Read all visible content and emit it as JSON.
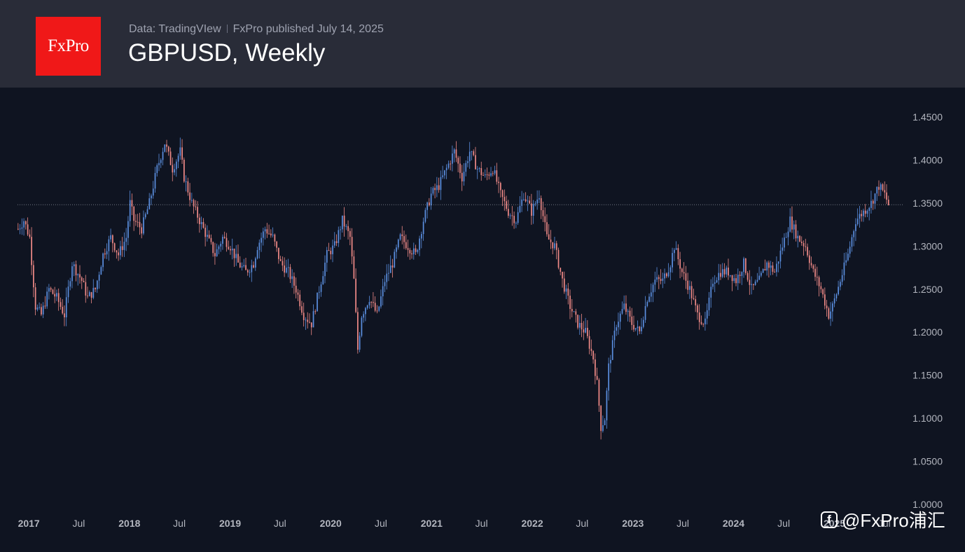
{
  "header": {
    "logo_text": "FxPro",
    "source_text": "Data: TradingVIew",
    "published_text": "FxPro published July 14, 2025",
    "title": "GBPUSD, Weekly"
  },
  "watermark": {
    "icon": "app-logo-icon",
    "text": "@FxPro浦汇"
  },
  "colors": {
    "background": "#0f1421",
    "header": "#292c38",
    "logo": "#f01818",
    "up_candle": "#5b8fe0",
    "down_candle": "#f08a87",
    "axis_text": "#b2b5be"
  },
  "chart_data": {
    "type": "candlestick",
    "title": "GBPUSD, Weekly",
    "x_axis": {
      "range": [
        "2016-11-21",
        "2025-07-14"
      ],
      "tick_labels": [
        {
          "label": "2017",
          "date": "2017-01-01"
        },
        {
          "label": "Jul",
          "date": "2017-07-01"
        },
        {
          "label": "2018",
          "date": "2018-01-01"
        },
        {
          "label": "Jul",
          "date": "2018-07-01"
        },
        {
          "label": "2019",
          "date": "2019-01-01"
        },
        {
          "label": "Jul",
          "date": "2019-07-01"
        },
        {
          "label": "2020",
          "date": "2020-01-01"
        },
        {
          "label": "Jul",
          "date": "2020-07-01"
        },
        {
          "label": "2021",
          "date": "2021-01-01"
        },
        {
          "label": "Jul",
          "date": "2021-07-01"
        },
        {
          "label": "2022",
          "date": "2022-01-01"
        },
        {
          "label": "Jul",
          "date": "2022-07-01"
        },
        {
          "label": "2023",
          "date": "2023-01-01"
        },
        {
          "label": "Jul",
          "date": "2023-07-01"
        },
        {
          "label": "2024",
          "date": "2024-01-01"
        },
        {
          "label": "Jul",
          "date": "2024-07-01"
        },
        {
          "label": "2025",
          "date": "2025-01-01"
        },
        {
          "label": "Jul",
          "date": "2025-07-01"
        }
      ]
    },
    "y_axis": {
      "ylim": [
        1.0,
        1.475
      ],
      "tick_labels": [
        "1.4500",
        "1.4000",
        "1.3500",
        "1.3000",
        "1.2500",
        "1.2000",
        "1.1500",
        "1.1000",
        "1.0500",
        "1.0000"
      ]
    },
    "last_price": 1.348,
    "grid": false,
    "price_path_closes": [
      [
        0,
        1.32
      ],
      [
        3,
        1.33
      ],
      [
        6,
        1.31
      ],
      [
        9,
        1.23
      ],
      [
        12,
        1.22
      ],
      [
        16,
        1.25
      ],
      [
        20,
        1.24
      ],
      [
        24,
        1.22
      ],
      [
        28,
        1.28
      ],
      [
        33,
        1.26
      ],
      [
        36,
        1.24
      ],
      [
        40,
        1.25
      ],
      [
        44,
        1.29
      ],
      [
        48,
        1.31
      ],
      [
        52,
        1.29
      ],
      [
        56,
        1.31
      ],
      [
        58,
        1.35
      ],
      [
        60,
        1.33
      ],
      [
        64,
        1.32
      ],
      [
        68,
        1.35
      ],
      [
        72,
        1.39
      ],
      [
        76,
        1.42
      ],
      [
        80,
        1.39
      ],
      [
        84,
        1.41
      ],
      [
        86,
        1.38
      ],
      [
        90,
        1.35
      ],
      [
        94,
        1.33
      ],
      [
        98,
        1.31
      ],
      [
        102,
        1.29
      ],
      [
        106,
        1.31
      ],
      [
        110,
        1.3
      ],
      [
        114,
        1.28
      ],
      [
        118,
        1.27
      ],
      [
        122,
        1.28
      ],
      [
        124,
        1.3
      ],
      [
        128,
        1.32
      ],
      [
        132,
        1.31
      ],
      [
        136,
        1.28
      ],
      [
        140,
        1.27
      ],
      [
        144,
        1.25
      ],
      [
        148,
        1.22
      ],
      [
        152,
        1.21
      ],
      [
        156,
        1.25
      ],
      [
        160,
        1.29
      ],
      [
        164,
        1.3
      ],
      [
        168,
        1.33
      ],
      [
        172,
        1.31
      ],
      [
        174,
        1.26
      ],
      [
        176,
        1.18
      ],
      [
        178,
        1.22
      ],
      [
        182,
        1.24
      ],
      [
        186,
        1.22
      ],
      [
        190,
        1.26
      ],
      [
        194,
        1.28
      ],
      [
        198,
        1.31
      ],
      [
        202,
        1.3
      ],
      [
        206,
        1.29
      ],
      [
        210,
        1.33
      ],
      [
        214,
        1.36
      ],
      [
        218,
        1.37
      ],
      [
        222,
        1.39
      ],
      [
        226,
        1.41
      ],
      [
        230,
        1.38
      ],
      [
        234,
        1.41
      ],
      [
        238,
        1.39
      ],
      [
        242,
        1.38
      ],
      [
        246,
        1.39
      ],
      [
        250,
        1.36
      ],
      [
        254,
        1.34
      ],
      [
        258,
        1.33
      ],
      [
        262,
        1.36
      ],
      [
        266,
        1.34
      ],
      [
        270,
        1.36
      ],
      [
        274,
        1.31
      ],
      [
        278,
        1.3
      ],
      [
        282,
        1.26
      ],
      [
        286,
        1.23
      ],
      [
        290,
        1.21
      ],
      [
        294,
        1.2
      ],
      [
        298,
        1.17
      ],
      [
        300,
        1.14
      ],
      [
        302,
        1.09
      ],
      [
        304,
        1.1
      ],
      [
        306,
        1.16
      ],
      [
        310,
        1.21
      ],
      [
        314,
        1.23
      ],
      [
        318,
        1.21
      ],
      [
        322,
        1.2
      ],
      [
        326,
        1.24
      ],
      [
        330,
        1.26
      ],
      [
        334,
        1.26
      ],
      [
        338,
        1.28
      ],
      [
        340,
        1.3
      ],
      [
        344,
        1.27
      ],
      [
        348,
        1.25
      ],
      [
        352,
        1.22
      ],
      [
        356,
        1.21
      ],
      [
        360,
        1.26
      ],
      [
        364,
        1.27
      ],
      [
        368,
        1.27
      ],
      [
        372,
        1.26
      ],
      [
        376,
        1.28
      ],
      [
        380,
        1.25
      ],
      [
        384,
        1.26
      ],
      [
        388,
        1.28
      ],
      [
        392,
        1.27
      ],
      [
        396,
        1.3
      ],
      [
        400,
        1.33
      ],
      [
        404,
        1.31
      ],
      [
        408,
        1.3
      ],
      [
        412,
        1.27
      ],
      [
        416,
        1.25
      ],
      [
        420,
        1.22
      ],
      [
        422,
        1.23
      ],
      [
        426,
        1.26
      ],
      [
        430,
        1.29
      ],
      [
        434,
        1.33
      ],
      [
        438,
        1.34
      ],
      [
        442,
        1.35
      ],
      [
        446,
        1.37
      ],
      [
        449,
        1.36
      ],
      [
        451,
        1.348
      ]
    ]
  }
}
